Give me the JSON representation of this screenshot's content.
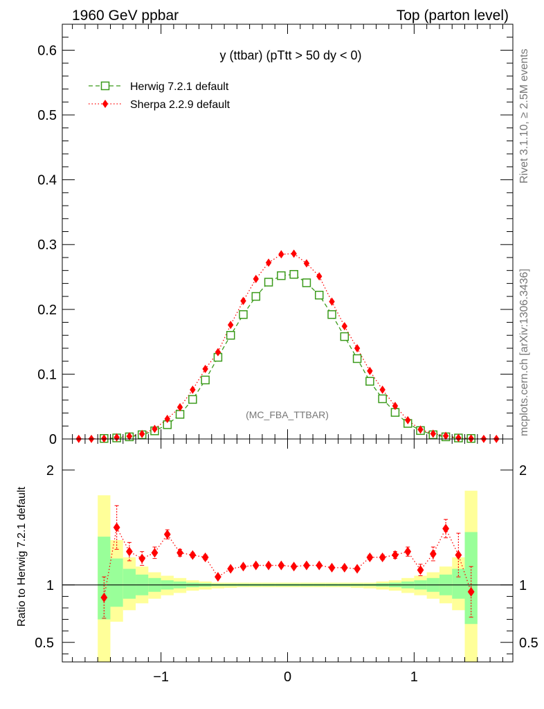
{
  "header": {
    "left": "1960 GeV ppbar",
    "right": "Top (parton level)"
  },
  "side": {
    "rivet": "Rivet 3.1.10, ≥ 2.5M events",
    "mcplots": "mcplots.cern.ch [arXiv:1306.3436]"
  },
  "chart_data": [
    {
      "type": "line",
      "title": "y (ttbar) (pTtt > 50 dy < 0)",
      "watermark": "(MC_FBA_TTBAR)",
      "xlim": [
        -1.78,
        1.78
      ],
      "ylim": [
        0,
        0.64
      ],
      "yticks": [
        "0",
        "0.1",
        "0.2",
        "0.3",
        "0.4",
        "0.5",
        "0.6"
      ],
      "xticks": [
        "−1",
        "0",
        "1"
      ],
      "legend_position": "top-left",
      "x": [
        -1.65,
        -1.55,
        -1.45,
        -1.35,
        -1.25,
        -1.15,
        -1.05,
        -0.95,
        -0.85,
        -0.75,
        -0.65,
        -0.55,
        -0.45,
        -0.35,
        -0.25,
        -0.15,
        -0.05,
        0.05,
        0.15,
        0.25,
        0.35,
        0.45,
        0.55,
        0.65,
        0.75,
        0.85,
        0.95,
        1.05,
        1.15,
        1.25,
        1.35,
        1.45,
        1.55,
        1.65
      ],
      "series": [
        {
          "name": "Herwig 7.2.1 default",
          "color": "#3a9a1a",
          "marker": "open-square",
          "line": "dashed",
          "values": [
            null,
            null,
            0.0008,
            0.0016,
            0.0033,
            0.0065,
            0.0125,
            0.022,
            0.038,
            0.061,
            0.091,
            0.126,
            0.16,
            0.192,
            0.22,
            0.242,
            0.252,
            0.254,
            0.241,
            0.222,
            0.192,
            0.158,
            0.124,
            0.089,
            0.062,
            0.041,
            0.024,
            0.013,
            0.0065,
            0.0033,
            0.0015,
            0.0008,
            null,
            null
          ]
        },
        {
          "name": "Sherpa 2.2.9 default",
          "color": "#ff0000",
          "marker": "filled-diamond",
          "line": "dotted",
          "values": [
            0.0001,
            0.0002,
            0.0007,
            0.0024,
            0.0042,
            0.0078,
            0.0155,
            0.031,
            0.049,
            0.076,
            0.108,
            0.134,
            0.176,
            0.213,
            0.247,
            0.272,
            0.285,
            0.286,
            0.271,
            0.251,
            0.212,
            0.174,
            0.14,
            0.105,
            0.076,
            0.051,
            0.029,
            0.0145,
            0.0082,
            0.0048,
            0.0018,
            0.0007,
            0.0002,
            0.0001
          ]
        }
      ]
    },
    {
      "type": "line",
      "ylabel": "Ratio to Herwig 7.2.1 default",
      "xlim": [
        -1.78,
        1.78
      ],
      "ylim": [
        0.33,
        2.27
      ],
      "yticks": [
        "0.5",
        "1",
        "2"
      ],
      "xticks": [
        "−1",
        "0",
        "1"
      ],
      "reference_line": 1,
      "band_colors": {
        "inner": "#99ff99",
        "outer": "#ffff99"
      },
      "bands": {
        "x_edges": [
          -1.5,
          -1.4,
          -1.3,
          -1.2,
          -1.1,
          -1.0,
          -0.9,
          -0.8,
          -0.7,
          -0.6,
          -0.5,
          -0.4,
          -0.3,
          -0.2,
          -0.1,
          0.0,
          0.1,
          0.2,
          0.3,
          0.4,
          0.5,
          0.6,
          0.7,
          0.8,
          0.9,
          1.0,
          1.1,
          1.2,
          1.3,
          1.4,
          1.5
        ],
        "inner_low": [
          0.7,
          0.81,
          0.88,
          0.91,
          0.94,
          0.96,
          0.97,
          0.98,
          0.985,
          0.99,
          0.99,
          0.99,
          0.99,
          0.99,
          0.99,
          0.99,
          0.99,
          0.99,
          0.99,
          0.99,
          0.99,
          0.99,
          0.985,
          0.98,
          0.97,
          0.96,
          0.94,
          0.91,
          0.88,
          0.66
        ],
        "inner_high": [
          1.42,
          1.23,
          1.14,
          1.09,
          1.06,
          1.04,
          1.03,
          1.02,
          1.015,
          1.01,
          1.01,
          1.01,
          1.01,
          1.01,
          1.01,
          1.01,
          1.01,
          1.01,
          1.01,
          1.01,
          1.01,
          1.01,
          1.015,
          1.02,
          1.03,
          1.04,
          1.06,
          1.09,
          1.14,
          1.46
        ],
        "outer_low": [
          0.33,
          0.68,
          0.78,
          0.84,
          0.88,
          0.91,
          0.93,
          0.95,
          0.96,
          0.97,
          0.975,
          0.98,
          0.98,
          0.98,
          0.98,
          0.98,
          0.98,
          0.98,
          0.98,
          0.98,
          0.975,
          0.97,
          0.96,
          0.95,
          0.93,
          0.91,
          0.88,
          0.84,
          0.78,
          0.33
        ],
        "outer_high": [
          1.78,
          1.39,
          1.24,
          1.16,
          1.11,
          1.08,
          1.06,
          1.04,
          1.03,
          1.02,
          1.02,
          1.02,
          1.02,
          1.02,
          1.02,
          1.02,
          1.02,
          1.02,
          1.02,
          1.02,
          1.02,
          1.02,
          1.03,
          1.04,
          1.06,
          1.08,
          1.11,
          1.16,
          1.24,
          1.82
        ]
      },
      "points": {
        "name": "Sherpa 2.2.9 default",
        "x": [
          -1.45,
          -1.35,
          -1.25,
          -1.15,
          -1.05,
          -0.95,
          -0.85,
          -0.75,
          -0.65,
          -0.55,
          -0.45,
          -0.35,
          -0.25,
          -0.15,
          -0.05,
          0.05,
          0.15,
          0.25,
          0.35,
          0.45,
          0.55,
          0.65,
          0.75,
          0.85,
          0.95,
          1.05,
          1.15,
          1.25,
          1.35,
          1.45
        ],
        "values": [
          0.89,
          1.5,
          1.29,
          1.23,
          1.28,
          1.44,
          1.28,
          1.26,
          1.24,
          1.07,
          1.14,
          1.16,
          1.17,
          1.17,
          1.17,
          1.16,
          1.17,
          1.17,
          1.15,
          1.15,
          1.14,
          1.24,
          1.24,
          1.26,
          1.29,
          1.13,
          1.27,
          1.49,
          1.26,
          0.94
        ],
        "err": [
          0.18,
          0.19,
          0.08,
          0.06,
          0.05,
          0.04,
          0.03,
          0.02,
          0.02,
          0.015,
          0.015,
          0.015,
          0.015,
          0.015,
          0.015,
          0.015,
          0.015,
          0.015,
          0.015,
          0.015,
          0.015,
          0.02,
          0.02,
          0.03,
          0.04,
          0.05,
          0.06,
          0.08,
          0.19,
          0.22
        ]
      }
    }
  ]
}
